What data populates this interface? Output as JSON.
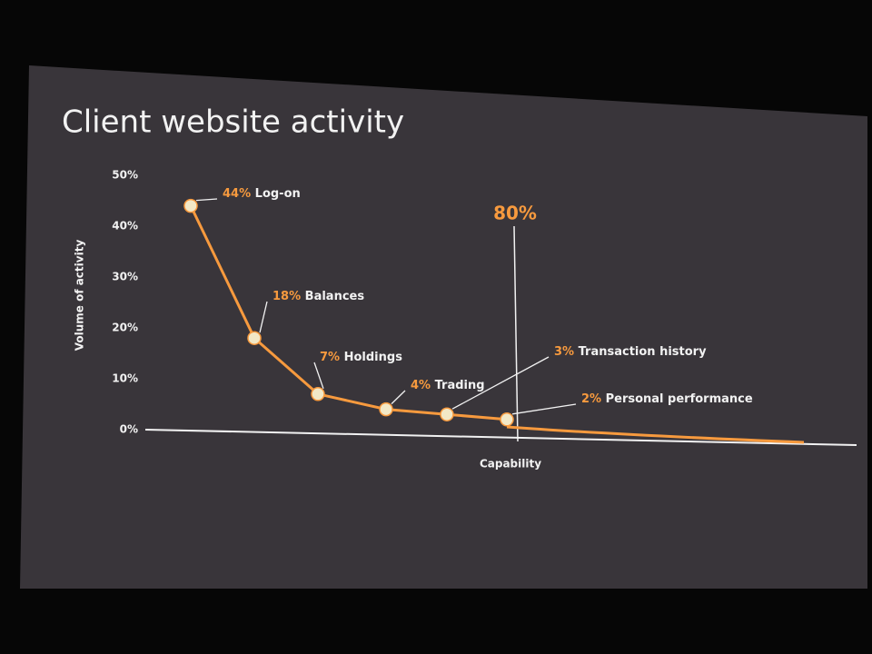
{
  "chart_data": {
    "type": "line",
    "title": "Client website activity",
    "y_label": "Volume of activity",
    "x_label": "Capability",
    "categories": [
      "Log-on",
      "Balances",
      "Holdings",
      "Trading",
      "Transaction history",
      "Personal performance"
    ],
    "values": [
      44,
      18,
      7,
      4,
      3,
      2
    ],
    "value_labels": [
      "44%",
      "18%",
      "7%",
      "4%",
      "3%",
      "2%"
    ],
    "color": "#f79a3e",
    "ylim": [
      0,
      50
    ],
    "yticks": [
      {
        "value": 0,
        "label": "0%"
      },
      {
        "value": 10,
        "label": "10%"
      },
      {
        "value": 20,
        "label": "20%"
      },
      {
        "value": 30,
        "label": "30%"
      },
      {
        "value": 40,
        "label": "40%"
      },
      {
        "value": 50,
        "label": "50%"
      }
    ],
    "annotation": "80%"
  }
}
